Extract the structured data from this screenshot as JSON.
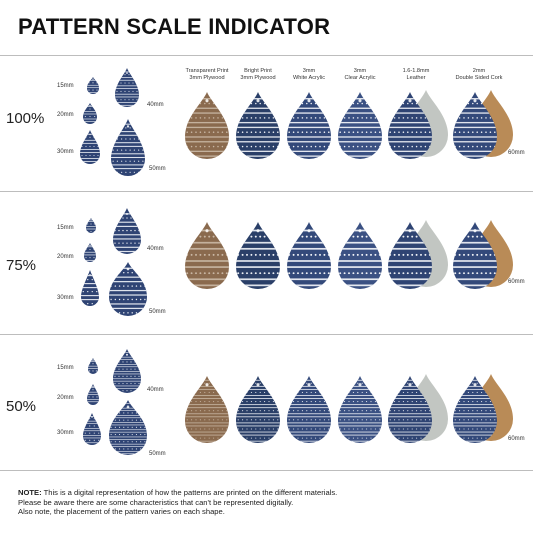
{
  "title": "PATTERN SCALE INDICATOR",
  "materials": [
    {
      "line1": "Transparent Print",
      "line2": "3mm Plywood",
      "color": "#8a6a4e",
      "stripe": "#c9b7a4"
    },
    {
      "line1": "Bright Print",
      "line2": "3mm Plywood",
      "color": "#2a3f68",
      "stripe": "#eef1f6"
    },
    {
      "line1": "3mm",
      "line2": "White Acrylic",
      "color": "#33497a",
      "stripe": "#f2f4f8"
    },
    {
      "line1": "3mm",
      "line2": "Clear Acrylic",
      "color": "#3b5183",
      "stripe": "#f4f6fa"
    },
    {
      "line1": "1.6-1.8mm",
      "line2": "Leather",
      "color": "#2f4473",
      "stripe": "#f0f2f6",
      "backing": "#c2c6c2"
    },
    {
      "line1": "2mm",
      "line2": "Double Sided Cork",
      "color": "#33497a",
      "stripe": "#f0f2f6",
      "backing": "#b98b57"
    }
  ],
  "sections": [
    {
      "percent": "100%",
      "label_15": "15mm",
      "label_20": "20mm",
      "label_30": "30mm",
      "label_40": "40mm",
      "label_50": "50mm",
      "label_60": "60mm"
    },
    {
      "percent": "75%",
      "label_15": "15mm",
      "label_20": "20mm",
      "label_30": "30mm",
      "label_40": "40mm",
      "label_50": "50mm",
      "label_60": "60mm"
    },
    {
      "percent": "50%",
      "label_15": "15mm",
      "label_20": "20mm",
      "label_30": "30mm",
      "label_40": "40mm",
      "label_50": "50mm",
      "label_60": "60mm"
    }
  ],
  "note": {
    "label": "NOTE:",
    "line1": "This is a digital representation of how the patterns are printed on the different materials.",
    "line2": "Please be aware there are some characteristics that can't be represented digitally.",
    "line3": "Also note, the placement of the pattern varies on each shape."
  }
}
